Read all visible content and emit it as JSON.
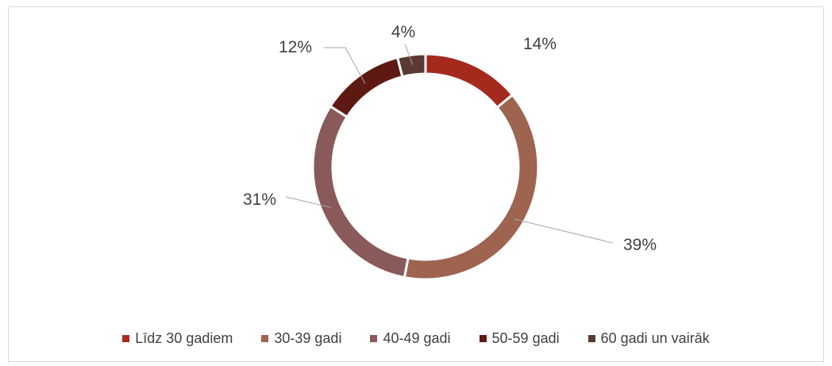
{
  "chart_data": {
    "type": "pie",
    "style": "donut",
    "categories": [
      "Līdz 30 gadiem",
      "30-39 gadi",
      "40-49 gadi",
      "50-59 gadi",
      "60 gadi un vairāk"
    ],
    "values": [
      14,
      39,
      31,
      12,
      4
    ],
    "value_labels": [
      "14%",
      "39%",
      "31%",
      "12%",
      "4%"
    ],
    "colors": [
      "#a52a1e",
      "#9e6450",
      "#8a5a5a",
      "#5e1a12",
      "#5a3a30"
    ],
    "title": "",
    "legend_position": "bottom"
  }
}
